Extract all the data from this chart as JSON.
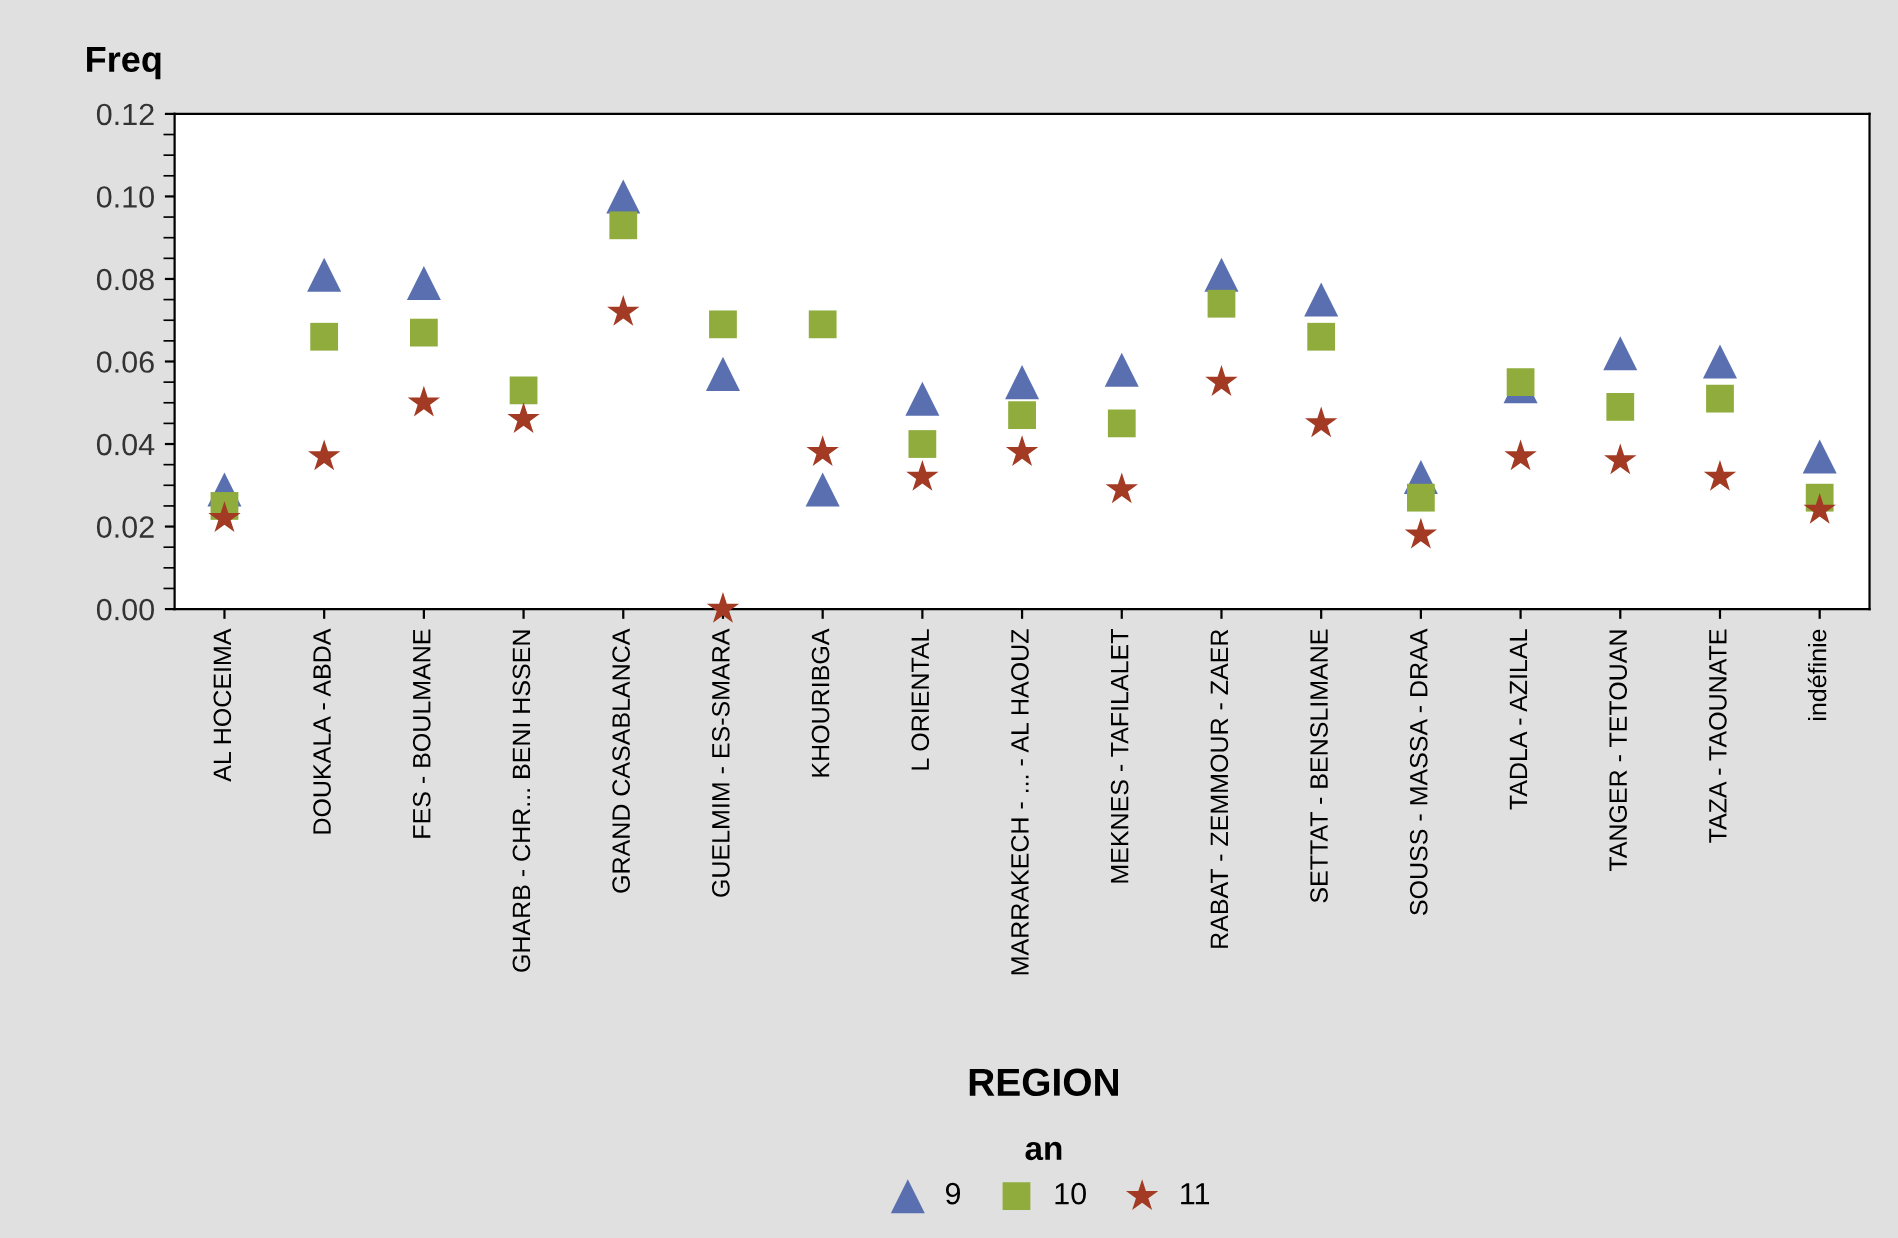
{
  "chart_data": {
    "type": "scatter",
    "xlabel": "REGION",
    "ylabel": "Freq",
    "legend_title": "an",
    "legend": "bottom",
    "grid": false,
    "categories": [
      "AL HOCEIMA",
      "DOUKALA - ABDA",
      "FES - BOULMANE",
      "GHARB - CHR... BENI HSSEN",
      "GRAND CASABLANCA",
      "GUELMIM - ES-SMARA",
      "KHOURIBGA",
      "L ORIENTAL",
      "MARRAKECH - ... - AL HAOUZ",
      "MEKNES - TAFILALET",
      "RABAT - ZEMMOUR - ZAER",
      "SETTAT - BENSLIMANE",
      "SOUSS - MASSA - DRAA",
      "TADLA - AZILAL",
      "TANGER - TETOUAN",
      "TAZA - TAOUNATE",
      "indéfinie"
    ],
    "ylim": [
      0,
      0.12
    ],
    "yticks": [
      {
        "value": 0,
        "label": "0.00"
      },
      {
        "value": 0.02,
        "label": "0.02"
      },
      {
        "value": 0.04,
        "label": "0.04"
      },
      {
        "value": 0.06,
        "label": "0.06"
      },
      {
        "value": 0.08,
        "label": "0.08"
      },
      {
        "value": 0.1,
        "label": "0.10"
      },
      {
        "value": 0.12,
        "label": "0.12"
      }
    ],
    "series": [
      {
        "name": "9",
        "color": "#5a6fb0",
        "marker": "triangle",
        "values": [
          0.029,
          0.081,
          0.079,
          null,
          0.1,
          0.057,
          0.029,
          0.051,
          0.055,
          0.058,
          0.081,
          0.075,
          0.032,
          0.054,
          0.062,
          0.06,
          0.037
        ]
      },
      {
        "name": "10",
        "color": "#8fac3c",
        "marker": "square",
        "values": [
          0.025,
          0.066,
          0.067,
          0.053,
          0.093,
          0.069,
          0.069,
          0.04,
          0.047,
          0.045,
          0.074,
          0.066,
          0.027,
          0.055,
          0.049,
          0.051,
          0.027
        ]
      },
      {
        "name": "11",
        "color": "#a33a24",
        "marker": "star",
        "values": [
          0.022,
          0.037,
          0.05,
          0.046,
          0.072,
          0.0,
          0.038,
          0.032,
          0.038,
          0.029,
          0.055,
          0.045,
          0.018,
          0.037,
          0.036,
          0.032,
          0.024
        ]
      }
    ]
  }
}
